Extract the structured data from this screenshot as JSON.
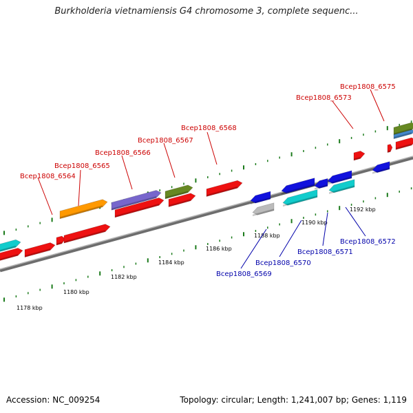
{
  "title": "Burkholderia vietnamiensis G4 chromosome 3, complete sequenc...",
  "footer": {
    "accession": "Accession: NC_009254",
    "summary": "Topology: circular; Length: 1,241,007 bp; Genes: 1,119"
  },
  "colors": {
    "forward_label": "#cc0000",
    "reverse_label": "#0000aa",
    "tick": "#1a7a1a",
    "backbone": "#888888"
  },
  "scale_labels": [
    "1178 kbp",
    "1180 kbp",
    "1182 kbp",
    "1184 kbp",
    "1186 kbp",
    "1188 kbp",
    "1190 kbp",
    "1192 kbp"
  ],
  "forward_labels": [
    "Bcep1808_6564",
    "Bcep1808_6565",
    "Bcep1808_6566",
    "Bcep1808_6567",
    "Bcep1808_6568",
    "Bcep1808_6573",
    "Bcep1808_6575"
  ],
  "reverse_labels": [
    "Bcep1808_6569",
    "Bcep1808_6570",
    "Bcep1808_6571",
    "Bcep1808_6572"
  ]
}
